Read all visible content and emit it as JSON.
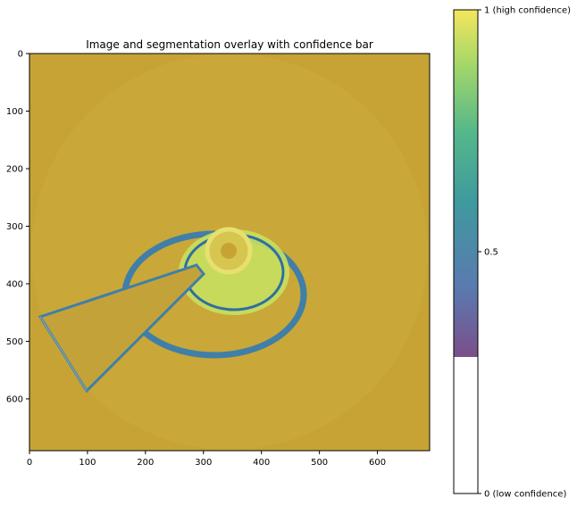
{
  "chart_data": {
    "type": "heatmap",
    "title": "Image and segmentation overlay with confidence bar",
    "xlabel": "",
    "ylabel": "",
    "xlim": [
      0,
      690
    ],
    "ylim": [
      690,
      0
    ],
    "x_ticks": [
      0,
      100,
      200,
      300,
      400,
      500,
      600
    ],
    "y_ticks": [
      0,
      100,
      200,
      300,
      400,
      500,
      600
    ],
    "x_tick_labels": [
      "0",
      "100",
      "200",
      "300",
      "400",
      "500",
      "600"
    ],
    "y_tick_labels": [
      "0",
      "100",
      "200",
      "300",
      "400",
      "500",
      "600"
    ],
    "background_color": "#c7a335",
    "colorbar": {
      "range": [
        0,
        1
      ],
      "ticks": [
        0,
        0.5,
        1
      ],
      "tick_labels": [
        "0 (low confidence)",
        "0.5",
        "1 (high confidence)"
      ],
      "blank_below": 0.28,
      "colormap": [
        "#7b4f8a",
        "#5a7ab0",
        "#3f9a9e",
        "#55b88a",
        "#a8d868",
        "#f4e65c"
      ]
    }
  }
}
